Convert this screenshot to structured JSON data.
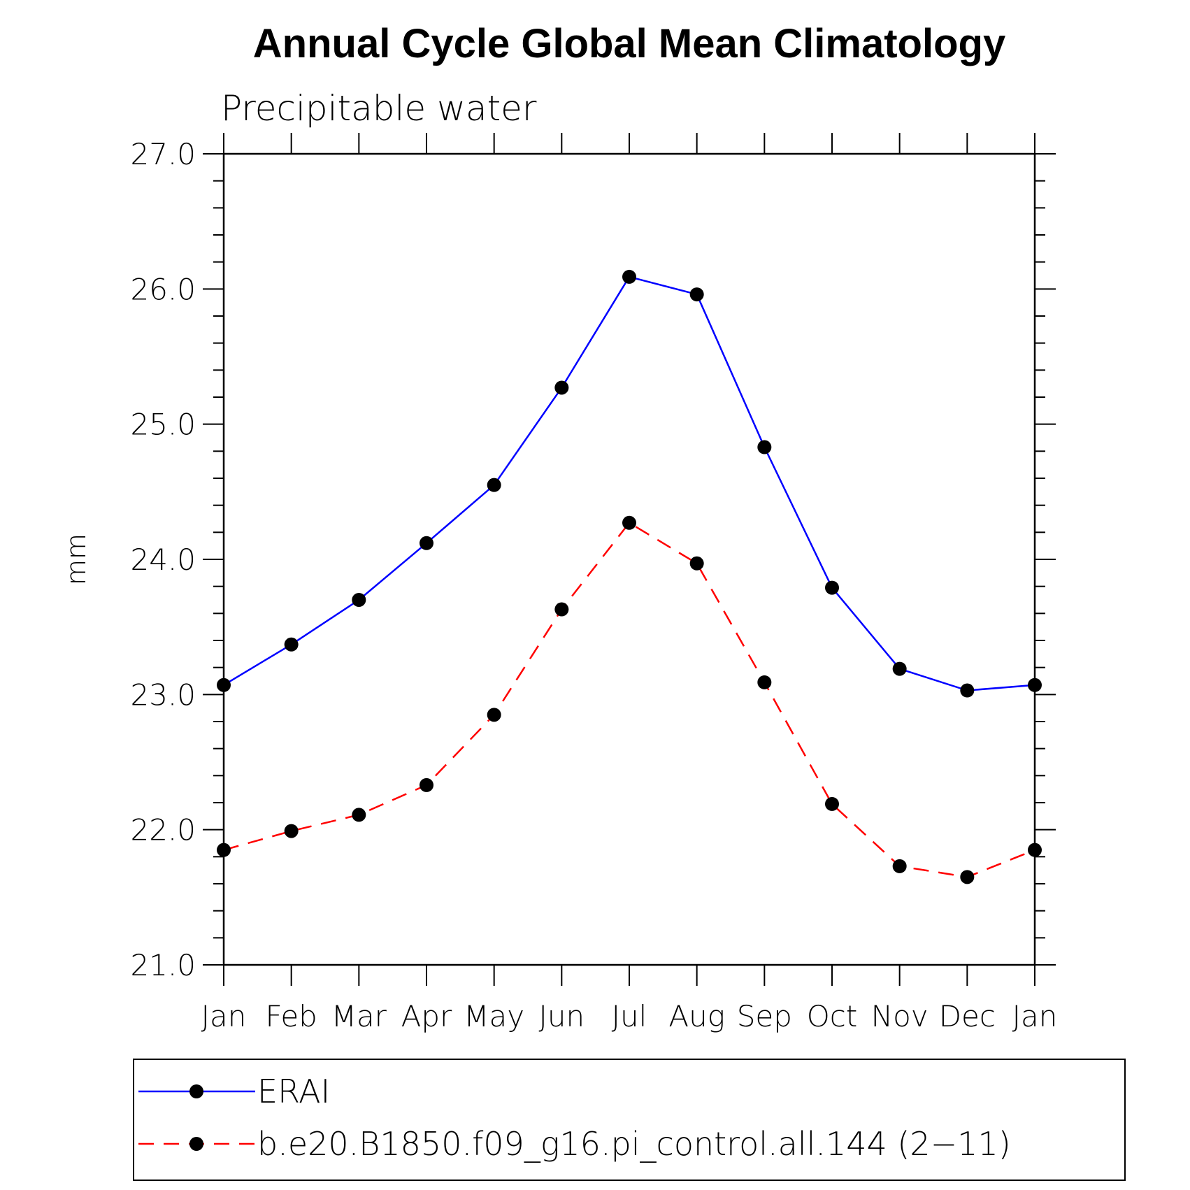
{
  "chart_data": {
    "type": "line",
    "title": "Annual Cycle Global Mean Climatology",
    "subtitle": "Precipitable water",
    "xlabel": "",
    "ylabel": "mm",
    "categories": [
      "Jan",
      "Feb",
      "Mar",
      "Apr",
      "May",
      "Jun",
      "Jul",
      "Aug",
      "Sep",
      "Oct",
      "Nov",
      "Dec",
      "Jan"
    ],
    "ylim": [
      21.0,
      27.0
    ],
    "yticks": [
      "21.0",
      "22.0",
      "23.0",
      "24.0",
      "25.0",
      "26.0",
      "27.0"
    ],
    "grid": false,
    "legend_position": "bottom",
    "series": [
      {
        "name": "ERAI",
        "color": "#0000ff",
        "line_style": "solid",
        "marker": "circle",
        "values": [
          23.07,
          23.37,
          23.7,
          24.12,
          24.55,
          25.27,
          26.09,
          25.96,
          24.83,
          23.79,
          23.19,
          23.03,
          23.07
        ]
      },
      {
        "name": "b.e20.B1850.f09_g16.pi_control.all.144 (2−11)",
        "color": "#ff0000",
        "line_style": "dashed",
        "marker": "circle",
        "values": [
          21.85,
          21.99,
          22.11,
          22.33,
          22.85,
          23.63,
          24.27,
          23.97,
          23.09,
          22.19,
          21.73,
          21.65,
          21.85
        ]
      }
    ]
  }
}
